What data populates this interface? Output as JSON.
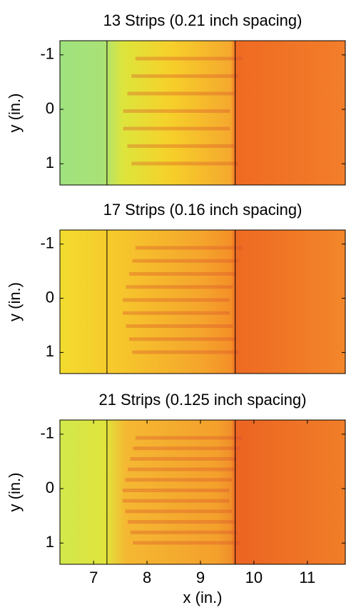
{
  "chart_data": [
    {
      "type": "image",
      "title": "13 Strips (0.21 inch spacing)",
      "y_label": "y (in.)",
      "xlim": [
        6.37,
        11.71
      ],
      "ylim": [
        1.39,
        -1.26
      ],
      "yticks": [
        -1,
        0,
        1
      ],
      "vlines": [
        7.25,
        9.65
      ]
    },
    {
      "type": "image",
      "title": "17 Strips (0.16 inch spacing)",
      "y_label": "y (in.)",
      "xlim": [
        6.37,
        11.71
      ],
      "ylim": [
        1.39,
        -1.26
      ],
      "yticks": [
        -1,
        0,
        1
      ],
      "vlines": [
        7.25,
        9.65
      ]
    },
    {
      "type": "image",
      "title": "21 Strips (0.125 inch spacing)",
      "y_label": "y (in.)",
      "x_label": "x (in.)",
      "xlim": [
        6.37,
        11.71
      ],
      "ylim": [
        1.39,
        -1.26
      ],
      "yticks": [
        -1,
        0,
        1
      ],
      "xticks": [
        7,
        8,
        9,
        10,
        11
      ],
      "vlines": [
        7.25,
        9.65
      ]
    }
  ]
}
